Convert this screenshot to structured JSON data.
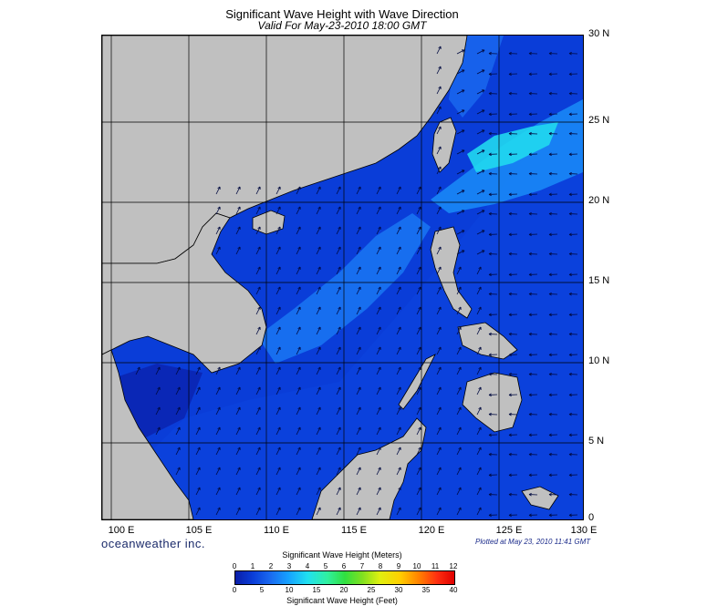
{
  "title": "Significant Wave Height with Wave Direction",
  "subtitle": "Valid For May-23-2010 18:00 GMT",
  "latitude_labels": [
    "30 N",
    "25 N",
    "20 N",
    "15 N",
    "10 N",
    "5 N",
    "0"
  ],
  "longitude_labels": [
    "100 E",
    "105 E",
    "110 E",
    "115 E",
    "120 E",
    "125 E",
    "130 E"
  ],
  "brand": "oceanweather inc.",
  "plotted_text": "Plotted at May 23, 2010 11:41 GMT",
  "colorbar": {
    "title_meters": "Significant Wave Height (Meters)",
    "title_feet": "Significant Wave Height (Feet)",
    "meter_ticks": [
      "0",
      "1",
      "2",
      "3",
      "4",
      "5",
      "6",
      "7",
      "8",
      "9",
      "10",
      "11",
      "12"
    ],
    "feet_ticks": [
      "0",
      "5",
      "10",
      "15",
      "20",
      "25",
      "30",
      "35",
      "40"
    ],
    "colors": [
      "#0a1ea8",
      "#0a3dd8",
      "#1a6af0",
      "#16a0ff",
      "#20e0f0",
      "#30f0a0",
      "#30e040",
      "#80e020",
      "#e0f010",
      "#ffd000",
      "#ff8000",
      "#ff3010",
      "#e00000"
    ]
  },
  "map": {
    "extent": {
      "lon": [
        99,
        130
      ],
      "lat": [
        0,
        30
      ]
    },
    "land_color": "#c0c0c0",
    "sea_base_color": "#0a3dd8",
    "wave_direction": "toward north-east over the South China Sea, toward west east of the Philippines"
  }
}
